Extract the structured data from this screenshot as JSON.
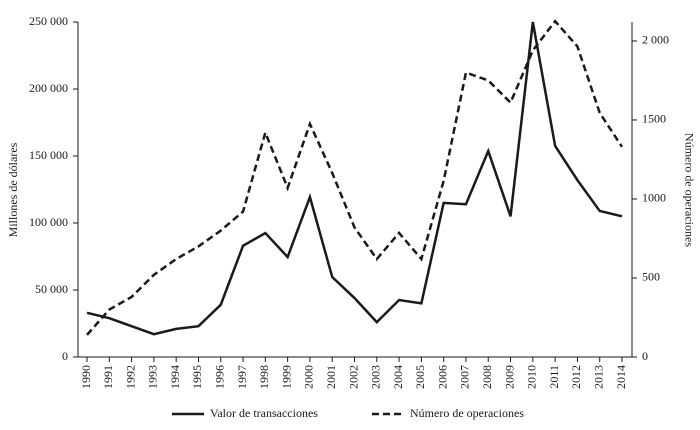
{
  "chart_data": {
    "type": "line",
    "y_label": "Millones de dólares",
    "y2_label": "Número de operaciones",
    "categories": [
      "1990",
      "1991",
      "1992",
      "1993",
      "1994",
      "1995",
      "1996",
      "1997",
      "1998",
      "1999",
      "2000",
      "2001",
      "2002",
      "2003",
      "2004",
      "2005",
      "2006",
      "2007",
      "2008",
      "2009",
      "2010",
      "2011",
      "2012",
      "2013",
      "2014"
    ],
    "series": [
      {
        "name": "Valor de transacciones",
        "color": "#1a1a1a",
        "dash": "solid",
        "values": [
          33000,
          29000,
          23000,
          17000,
          21000,
          23000,
          39000,
          83000,
          92500,
          74600,
          119400,
          59700,
          44000,
          26000,
          42500,
          40000,
          115000,
          114000,
          153700,
          105000,
          250000,
          157500,
          132000,
          109000,
          105000
        ]
      },
      {
        "name": "Número de operaciones",
        "color": "#1a1a1a",
        "dash": "dashed",
        "axis": "y2",
        "values": [
          140,
          300,
          380,
          520,
          620,
          700,
          800,
          920,
          1420,
          1070,
          1475,
          1165,
          820,
          620,
          785,
          620,
          1115,
          1800,
          1750,
          1610,
          1940,
          2125,
          1965,
          1545,
          1330
        ]
      }
    ],
    "ylim": [
      0,
      250000
    ],
    "yticks": [
      0,
      {
        "value": 50000,
        "label": "50 000"
      },
      {
        "value": 100000,
        "label": "100 000"
      },
      {
        "value": 150000,
        "label": "150 000"
      },
      {
        "value": 200000,
        "label": "200 000"
      },
      {
        "value": 250000,
        "label": "250 000"
      }
    ],
    "y2lim": [
      0,
      2120
    ],
    "y2ticks": [
      0,
      500,
      1000,
      1500,
      {
        "value": 2000,
        "label": "2 000"
      }
    ],
    "legend": "bottom"
  }
}
